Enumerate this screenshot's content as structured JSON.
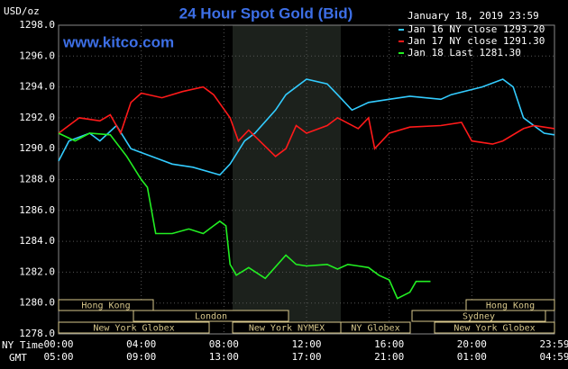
{
  "chart_data": {
    "type": "line",
    "title": "24 Hour Spot Gold (Bid)",
    "y_label": "USD/oz",
    "timestamp": "January 18, 2019 23:59",
    "website": "www.kitco.com",
    "x_label": "NY Time",
    "x2_label": "GMT",
    "xlim": [
      0,
      24
    ],
    "ylim": [
      1278,
      1298
    ],
    "xticks": [
      {
        "value": 0,
        "label": "00:00"
      },
      {
        "value": 4,
        "label": "04:00"
      },
      {
        "value": 8,
        "label": "08:00"
      },
      {
        "value": 12,
        "label": "12:00"
      },
      {
        "value": 16,
        "label": "16:00"
      },
      {
        "value": 20,
        "label": "20:00"
      },
      {
        "value": 24,
        "label": "23:59"
      }
    ],
    "x2ticks": [
      {
        "value": 0,
        "label": "05:00"
      },
      {
        "value": 4,
        "label": "09:00"
      },
      {
        "value": 8,
        "label": "13:00"
      },
      {
        "value": 12,
        "label": "17:00"
      },
      {
        "value": 16,
        "label": "21:00"
      },
      {
        "value": 20,
        "label": "01:00"
      },
      {
        "value": 24,
        "label": "04:59"
      }
    ],
    "yticks": [
      {
        "value": 1278,
        "label": "1278.0"
      },
      {
        "value": 1280,
        "label": "1280.0"
      },
      {
        "value": 1282,
        "label": "1282.0"
      },
      {
        "value": 1284,
        "label": "1284.0"
      },
      {
        "value": 1286,
        "label": "1286.0"
      },
      {
        "value": 1288,
        "label": "1288.0"
      },
      {
        "value": 1290,
        "label": "1290.0"
      },
      {
        "value": 1292,
        "label": "1292.0"
      },
      {
        "value": 1294,
        "label": "1294.0"
      },
      {
        "value": 1296,
        "label": "1296.0"
      },
      {
        "value": 1298,
        "label": "1298.0"
      }
    ],
    "grid": true,
    "sessions": [
      "Hong Kong",
      "Hong Kong",
      "London",
      "Sydney",
      "New York Globex",
      "New York NYMEX",
      "NY Globex",
      "New York Globex"
    ],
    "series": [
      {
        "name": "Jan 16 NY close 1293.20",
        "color": "#33ccff",
        "x": [
          0,
          0.5,
          1.5,
          2,
          2.8,
          3.5,
          4.5,
          5.5,
          6.5,
          7.8,
          8.3,
          9,
          9.5,
          10.5,
          11,
          12,
          13,
          13.5,
          14.2,
          15,
          16,
          17,
          18.5,
          19,
          20.5,
          21.5,
          22,
          22.5,
          23,
          23.5,
          24
        ],
        "values": [
          1289.2,
          1290.5,
          1291,
          1290.5,
          1291.5,
          1290,
          1289.5,
          1289,
          1288.8,
          1288.3,
          1289,
          1290.5,
          1291,
          1292.5,
          1293.5,
          1294.5,
          1294.2,
          1293.5,
          1292.5,
          1293,
          1293.2,
          1293.4,
          1293.2,
          1293.5,
          1294,
          1294.5,
          1294,
          1292,
          1291.5,
          1291,
          1290.9
        ]
      },
      {
        "name": "Jan 17 NY close 1291.30",
        "color": "#ff1a1a",
        "x": [
          0,
          1,
          2,
          2.5,
          3,
          3.5,
          4,
          5,
          6,
          7,
          7.5,
          8.3,
          8.7,
          9.2,
          10.5,
          11,
          11.5,
          12,
          13,
          13.5,
          14.5,
          15,
          15.3,
          16,
          17,
          18.5,
          19.5,
          20,
          21,
          21.5,
          22.5,
          23,
          24
        ],
        "values": [
          1291,
          1292,
          1291.8,
          1292.2,
          1291,
          1293,
          1293.6,
          1293.3,
          1293.7,
          1294,
          1293.5,
          1292,
          1290.5,
          1291.2,
          1289.5,
          1290,
          1291.5,
          1291,
          1291.5,
          1292,
          1291.3,
          1292,
          1290,
          1291,
          1291.4,
          1291.5,
          1291.7,
          1290.5,
          1290.3,
          1290.5,
          1291.3,
          1291.5,
          1291.3
        ]
      },
      {
        "name": "Jan 18 Last 1281.30",
        "color": "#22ee22",
        "x": [
          0,
          0.8,
          1.5,
          2.5,
          3.3,
          4,
          4.3,
          4.7,
          5.5,
          6.3,
          7,
          7.5,
          7.8,
          8.1,
          8.3,
          8.6,
          9.2,
          10,
          11,
          11.5,
          12,
          13,
          13.5,
          14,
          14.5,
          15,
          15.5,
          16,
          16.4,
          17,
          17.3,
          18
        ],
        "values": [
          1291,
          1290.5,
          1291,
          1290.9,
          1289.5,
          1288,
          1287.5,
          1284.5,
          1284.5,
          1284.8,
          1284.5,
          1285,
          1285.3,
          1285,
          1282.5,
          1281.8,
          1282.3,
          1281.6,
          1283.1,
          1282.5,
          1282.4,
          1282.5,
          1282.2,
          1282.5,
          1282.4,
          1282.3,
          1281.8,
          1281.5,
          1280.3,
          1280.7,
          1281.4,
          1281.4
        ]
      }
    ]
  }
}
